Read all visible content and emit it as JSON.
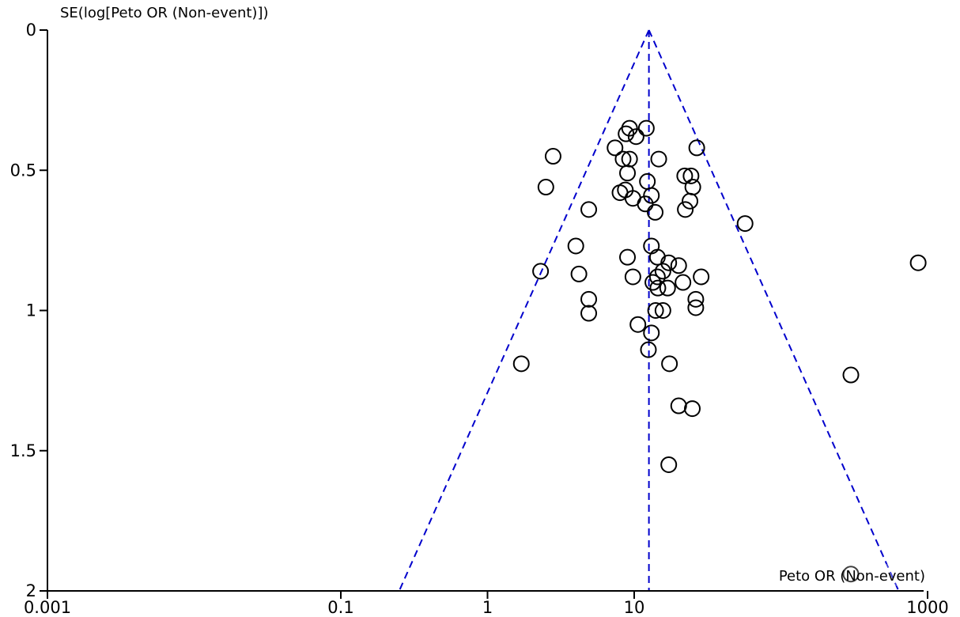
{
  "chart_data": {
    "type": "scatter",
    "title": "",
    "xlabel": "Peto OR (Non-event)",
    "ylabel": "SE(log[Peto OR (Non-event)])",
    "x_scale": "log",
    "x_ticks": [
      0.001,
      0.1,
      1,
      10,
      1000
    ],
    "x_tick_labels": [
      "0.001",
      "0.1",
      "1",
      "10",
      "1000"
    ],
    "y_ticks": [
      0,
      0.5,
      1,
      1.5,
      2
    ],
    "y_tick_labels": [
      "0",
      "0.5",
      "1",
      "1.5",
      "2"
    ],
    "ylim": [
      0,
      2
    ],
    "y_inverted": true,
    "grid": false,
    "pooled_estimate": 12.6,
    "funnel_se_max": 2,
    "colors": {
      "points": "#000000",
      "funnel": "#0000cc",
      "axes": "#000000"
    },
    "points": [
      {
        "x": 9.3,
        "y": 0.35
      },
      {
        "x": 12.1,
        "y": 0.35
      },
      {
        "x": 8.8,
        "y": 0.37
      },
      {
        "x": 10.3,
        "y": 0.38
      },
      {
        "x": 7.4,
        "y": 0.42
      },
      {
        "x": 26.7,
        "y": 0.42
      },
      {
        "x": 2.8,
        "y": 0.45
      },
      {
        "x": 8.4,
        "y": 0.46
      },
      {
        "x": 9.3,
        "y": 0.46
      },
      {
        "x": 14.7,
        "y": 0.46
      },
      {
        "x": 9.0,
        "y": 0.51
      },
      {
        "x": 22.1,
        "y": 0.52
      },
      {
        "x": 24.4,
        "y": 0.52
      },
      {
        "x": 12.3,
        "y": 0.54
      },
      {
        "x": 2.5,
        "y": 0.56
      },
      {
        "x": 25.1,
        "y": 0.56
      },
      {
        "x": 8.7,
        "y": 0.57
      },
      {
        "x": 8.0,
        "y": 0.58
      },
      {
        "x": 13.1,
        "y": 0.59
      },
      {
        "x": 9.8,
        "y": 0.6
      },
      {
        "x": 24.0,
        "y": 0.61
      },
      {
        "x": 11.9,
        "y": 0.62
      },
      {
        "x": 4.9,
        "y": 0.64
      },
      {
        "x": 22.3,
        "y": 0.64
      },
      {
        "x": 13.9,
        "y": 0.65
      },
      {
        "x": 57.0,
        "y": 0.69
      },
      {
        "x": 4.0,
        "y": 0.77
      },
      {
        "x": 13.1,
        "y": 0.77
      },
      {
        "x": 9.0,
        "y": 0.81
      },
      {
        "x": 14.4,
        "y": 0.81
      },
      {
        "x": 17.2,
        "y": 0.83
      },
      {
        "x": 20.1,
        "y": 0.84
      },
      {
        "x": 863.0,
        "y": 0.83
      },
      {
        "x": 2.3,
        "y": 0.86
      },
      {
        "x": 15.7,
        "y": 0.86
      },
      {
        "x": 4.2,
        "y": 0.87
      },
      {
        "x": 9.8,
        "y": 0.88
      },
      {
        "x": 14.4,
        "y": 0.88
      },
      {
        "x": 28.6,
        "y": 0.88
      },
      {
        "x": 13.4,
        "y": 0.9
      },
      {
        "x": 21.5,
        "y": 0.9
      },
      {
        "x": 14.5,
        "y": 0.92
      },
      {
        "x": 16.9,
        "y": 0.92
      },
      {
        "x": 4.9,
        "y": 0.96
      },
      {
        "x": 26.3,
        "y": 0.96
      },
      {
        "x": 14.0,
        "y": 1.0
      },
      {
        "x": 15.7,
        "y": 1.0
      },
      {
        "x": 26.3,
        "y": 0.99
      },
      {
        "x": 4.9,
        "y": 1.01
      },
      {
        "x": 10.6,
        "y": 1.05
      },
      {
        "x": 13.1,
        "y": 1.08
      },
      {
        "x": 12.5,
        "y": 1.14
      },
      {
        "x": 1.7,
        "y": 1.19
      },
      {
        "x": 17.4,
        "y": 1.19
      },
      {
        "x": 300.0,
        "y": 1.23
      },
      {
        "x": 20.1,
        "y": 1.34
      },
      {
        "x": 24.9,
        "y": 1.35
      },
      {
        "x": 17.2,
        "y": 1.55
      },
      {
        "x": 300.0,
        "y": 1.94
      }
    ]
  }
}
